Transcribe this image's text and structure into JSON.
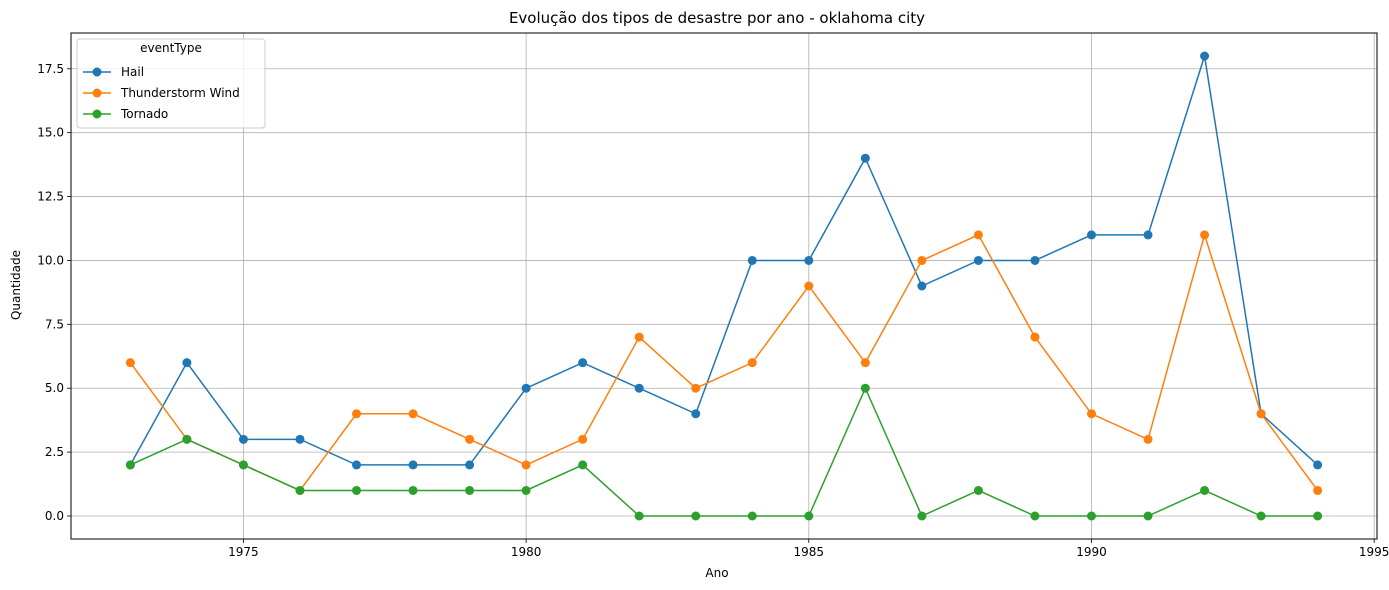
{
  "chart_data": {
    "type": "line",
    "title": "Evolução dos tipos de desastre por ano - oklahoma city",
    "xlabel": "Ano",
    "ylabel": "Quantidade",
    "xlim": [
      1971.95,
      1995.05
    ],
    "ylim": [
      -0.9,
      18.9
    ],
    "xticks": [
      1975,
      1980,
      1985,
      1990,
      1995
    ],
    "yticks": [
      0.0,
      2.5,
      5.0,
      7.5,
      10.0,
      12.5,
      15.0,
      17.5
    ],
    "ytick_labels": [
      "0.0",
      "2.5",
      "5.0",
      "7.5",
      "10.0",
      "12.5",
      "15.0",
      "17.5"
    ],
    "grid": true,
    "legend_title": "eventType",
    "legend_position": "upper-left",
    "x": [
      1973,
      1974,
      1975,
      1976,
      1977,
      1978,
      1979,
      1980,
      1981,
      1982,
      1983,
      1984,
      1985,
      1986,
      1987,
      1988,
      1989,
      1990,
      1991,
      1992,
      1993,
      1994
    ],
    "series": [
      {
        "name": "Hail",
        "color": "#1f77b4",
        "values": [
          2,
          6,
          3,
          3,
          2,
          2,
          2,
          5,
          6,
          5,
          4,
          10,
          10,
          14,
          9,
          10,
          10,
          11,
          11,
          18,
          4,
          2
        ]
      },
      {
        "name": "Thunderstorm Wind",
        "color": "#ff7f0e",
        "values": [
          6,
          3,
          2,
          1,
          4,
          4,
          3,
          2,
          3,
          7,
          5,
          6,
          9,
          6,
          10,
          11,
          7,
          4,
          3,
          11,
          4,
          1
        ]
      },
      {
        "name": "Tornado",
        "color": "#2ca02c",
        "values": [
          2,
          3,
          2,
          1,
          1,
          1,
          1,
          1,
          2,
          0,
          0,
          0,
          0,
          5,
          0,
          1,
          0,
          0,
          0,
          1,
          0,
          0
        ]
      }
    ]
  }
}
